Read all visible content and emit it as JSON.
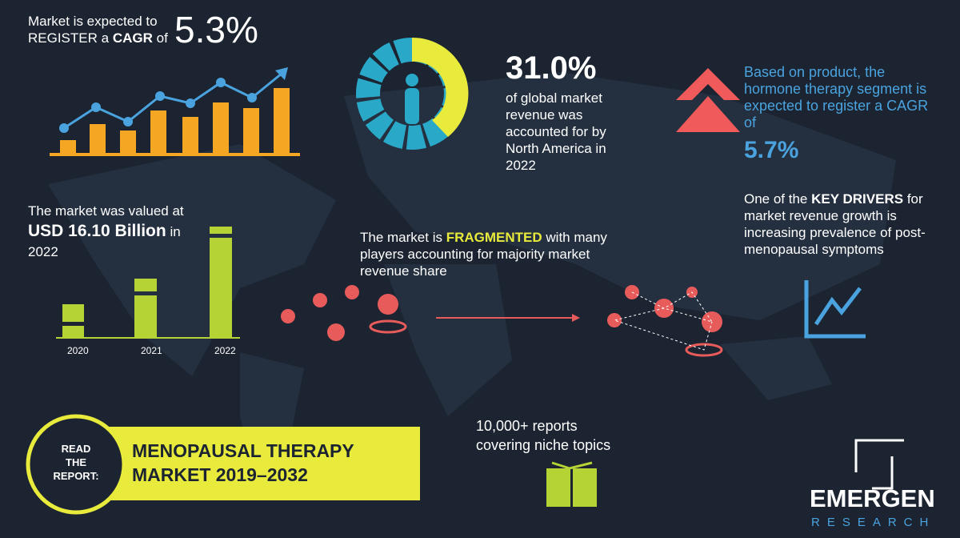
{
  "cagr_block": {
    "line1": "Market is expected to",
    "line2_pre": "REGISTER a",
    "line2_bold": "CAGR",
    "line2_post": "of",
    "value": "5.3%"
  },
  "north_america": {
    "value": "31.0%",
    "text": [
      "of global market",
      "revenue was",
      "accounted for by",
      "North America in",
      "2022"
    ]
  },
  "product_block": {
    "text": [
      "Based on product, the",
      "hormone therapy segment is",
      "expected to register a CAGR",
      "of"
    ],
    "value": "5.7%"
  },
  "drivers_block": {
    "pre": "One of the",
    "bold": "KEY DRIVERS",
    "post": "for market revenue growth is increasing prevalence of post-menopausal symptoms"
  },
  "valuation_block": {
    "line1": "The market was valued at",
    "bold": "USD 16.10 Billion",
    "post": "in",
    "line3": "2022",
    "years": [
      "2020",
      "2021",
      "2022"
    ]
  },
  "fragmented_block": {
    "pre": "The market is",
    "bold": "FRAGMENTED",
    "post": "with many players accounting for majority market revenue share"
  },
  "report_block": {
    "read": [
      "READ",
      "THE",
      "REPORT:"
    ],
    "title": [
      "MENOPAUSAL THERAPY",
      "MARKET 2019–2032"
    ]
  },
  "reports_block": {
    "text": [
      "10,000+ reports",
      "covering niche topics"
    ]
  },
  "logo": {
    "name": "EMERGEN",
    "sub": "RESEARCH"
  }
}
